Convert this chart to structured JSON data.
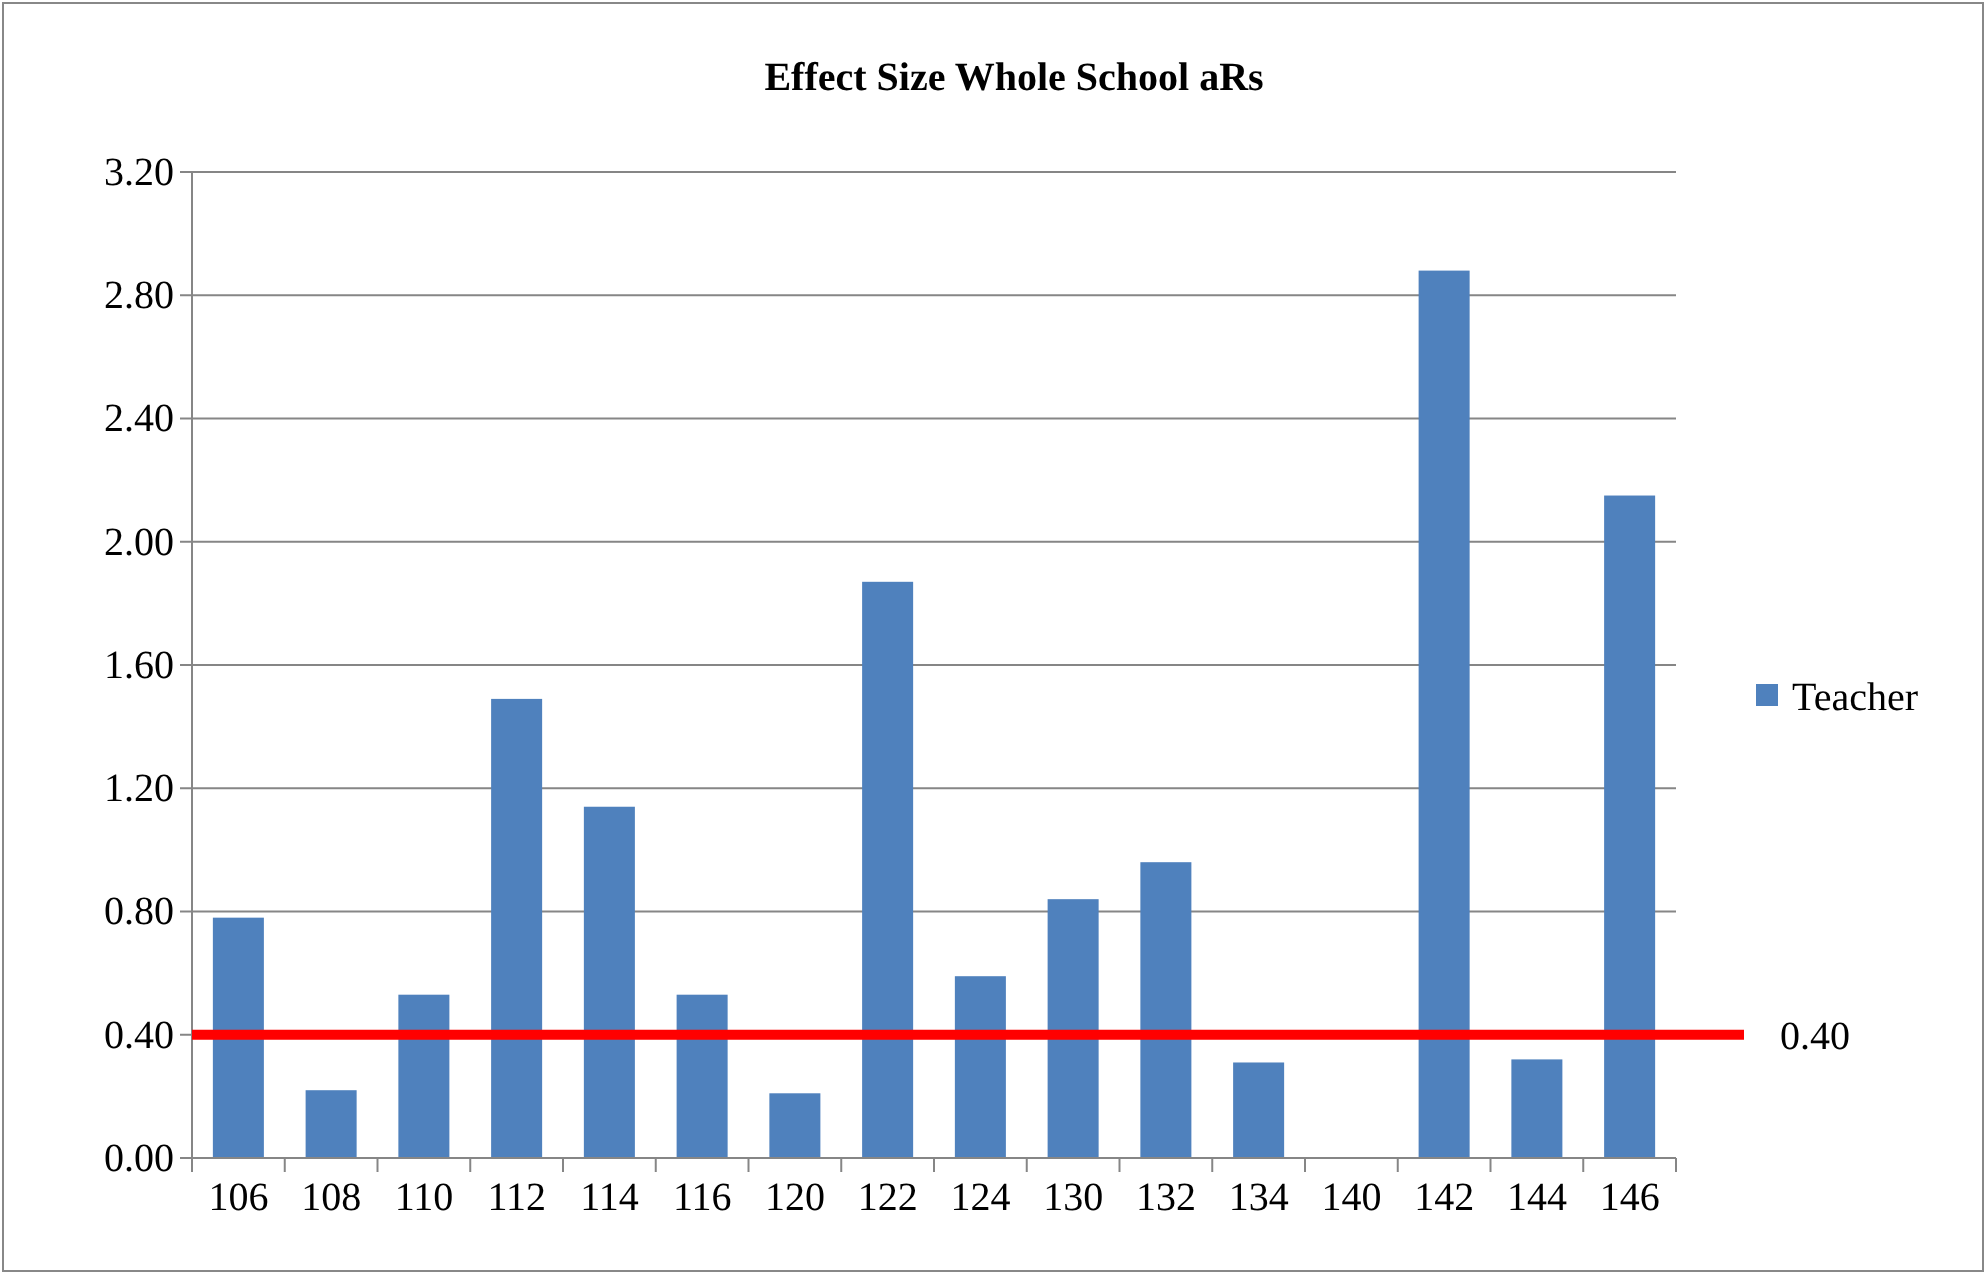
{
  "chart_data": {
    "type": "bar",
    "title": "Effect Size Whole School aRs",
    "categories": [
      "106",
      "108",
      "110",
      "112",
      "114",
      "116",
      "120",
      "122",
      "124",
      "130",
      "132",
      "134",
      "140",
      "142",
      "144",
      "146"
    ],
    "series": [
      {
        "name": "Teacher",
        "color": "#4f81bd",
        "values": [
          0.78,
          0.22,
          0.53,
          1.49,
          1.14,
          0.53,
          0.21,
          1.87,
          0.59,
          0.84,
          0.96,
          0.31,
          0,
          2.88,
          0.32,
          2.15
        ]
      }
    ],
    "ylim": [
      0,
      3.2
    ],
    "yticks": [
      {
        "value": 0,
        "label": "0.00"
      },
      {
        "value": 0.4,
        "label": "0.40"
      },
      {
        "value": 0.8,
        "label": "0.80"
      },
      {
        "value": 1.2,
        "label": "1.20"
      },
      {
        "value": 1.6,
        "label": "1.60"
      },
      {
        "value": 2,
        "label": "2.00"
      },
      {
        "value": 2.4,
        "label": "2.40"
      },
      {
        "value": 2.8,
        "label": "2.80"
      },
      {
        "value": 3.2,
        "label": "3.20"
      }
    ],
    "grid": "y",
    "legend": "right",
    "ref_lines": [
      {
        "axis": "y",
        "value": 0.4,
        "label": "0.40",
        "color": "#ff0000"
      }
    ]
  }
}
